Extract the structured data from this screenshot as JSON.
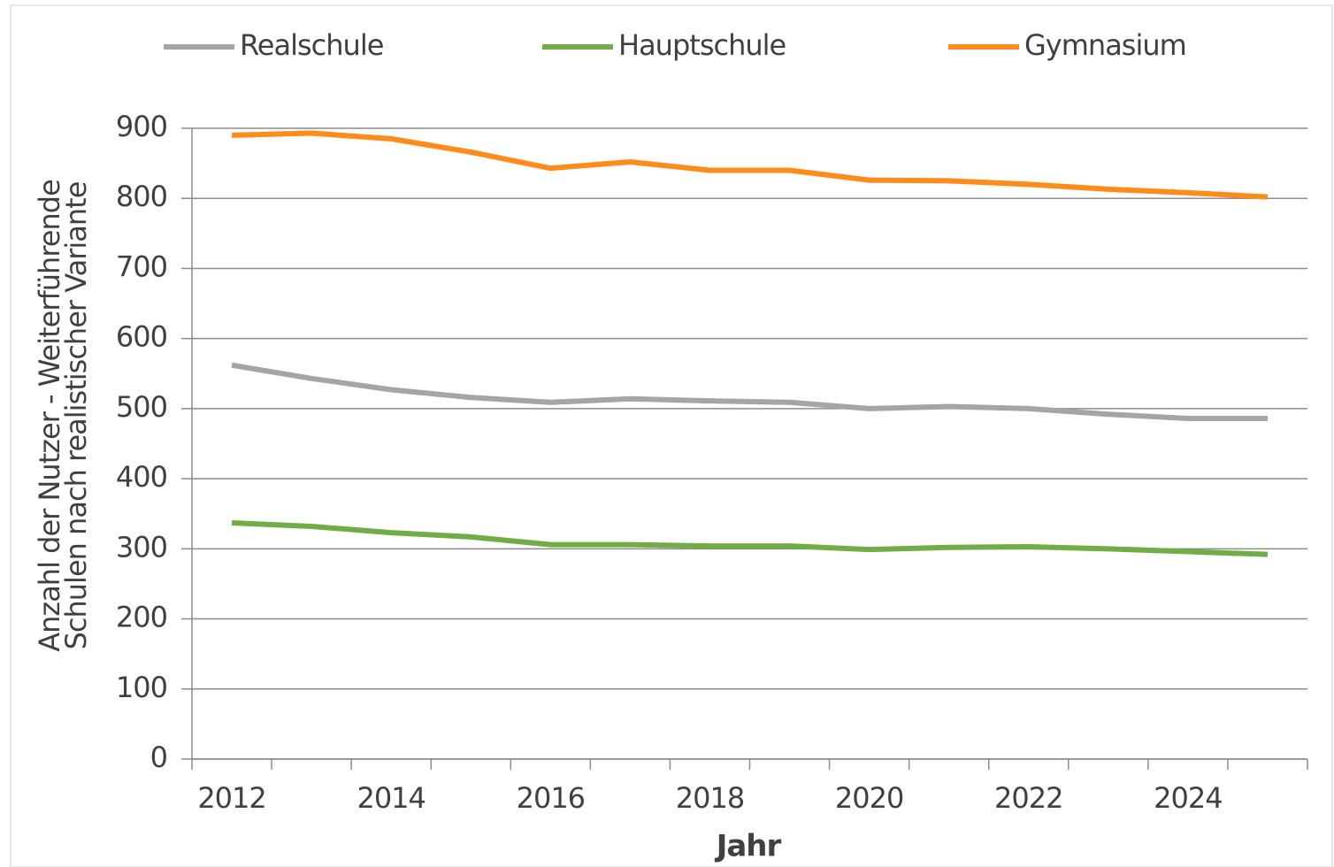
{
  "chart_data": {
    "type": "line",
    "xlabel": "Jahr",
    "ylabel": [
      "Anzahl der Nutzer - Weiterführende",
      "Schulen nach realistischer Variante"
    ],
    "categories": [
      "2012",
      null,
      "2014",
      null,
      "2016",
      null,
      "2018",
      null,
      "2020",
      null,
      "2022",
      null,
      "2024",
      null
    ],
    "series": [
      {
        "name": "Realschule",
        "color": "#a5a5a5",
        "values": [
          562,
          543,
          527,
          516,
          509,
          514,
          511,
          509,
          500,
          503,
          500,
          492,
          486,
          486
        ]
      },
      {
        "name": "Hauptschule",
        "color": "#70ad47",
        "values": [
          337,
          332,
          323,
          317,
          306,
          306,
          304,
          304,
          299,
          302,
          303,
          300,
          296,
          292
        ]
      },
      {
        "name": "Gymnasium",
        "color": "#ff8c1a",
        "values": [
          890,
          893,
          885,
          866,
          843,
          852,
          840,
          840,
          826,
          825,
          820,
          813,
          808,
          802
        ]
      }
    ],
    "ylim": [
      0,
      900
    ],
    "yticks": [
      0,
      100,
      200,
      300,
      400,
      500,
      600,
      700,
      800,
      900
    ],
    "grid": true,
    "legend": "top"
  }
}
